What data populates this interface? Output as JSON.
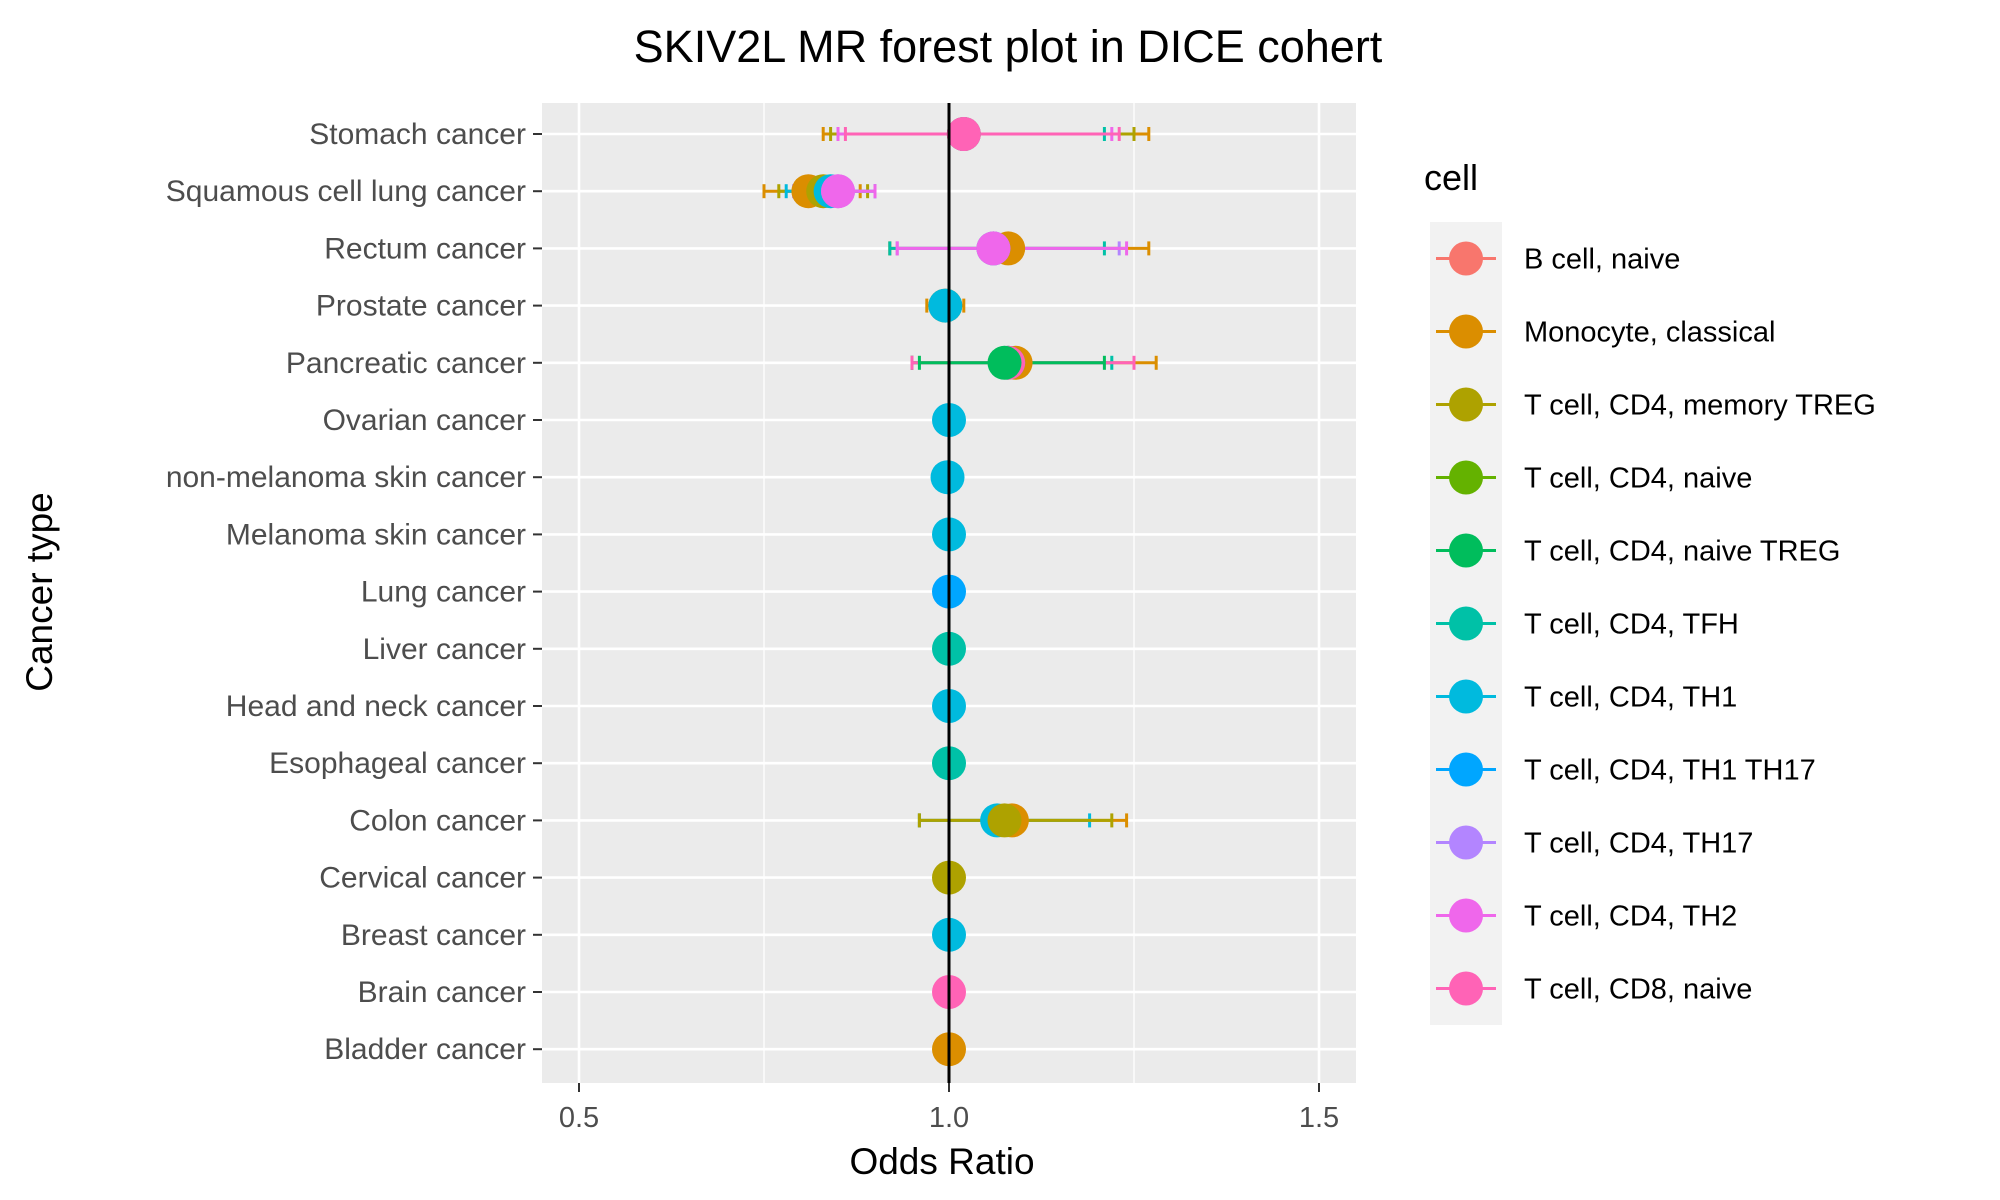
{
  "chart_data": {
    "type": "scatter",
    "subtype": "forest plot (odds ratio with 95% CI error bars)",
    "title": "SKIV2L MR forest plot in DICE cohert",
    "xlabel": "Odds Ratio",
    "ylabel": "Cancer type",
    "xlim": [
      0.45,
      1.55
    ],
    "x_ticks": [
      "0.5",
      "1.0",
      "1.5"
    ],
    "x_tick_values": [
      0.5,
      1.0,
      1.5
    ],
    "reference_line": 1.0,
    "grid": true,
    "legend": {
      "title": "cell",
      "placement": "right",
      "entries": [
        {
          "name": "B cell, naive",
          "color": "#F8766D"
        },
        {
          "name": "Monocyte, classical",
          "color": "#DB8E00"
        },
        {
          "name": "T cell, CD4, memory TREG",
          "color": "#AEA200"
        },
        {
          "name": "T cell, CD4, naive",
          "color": "#64B200"
        },
        {
          "name": "T cell, CD4, naive TREG",
          "color": "#00BD5C"
        },
        {
          "name": "T cell, CD4, TFH",
          "color": "#00C1A7"
        },
        {
          "name": "T cell, CD4, TH1",
          "color": "#00BADE"
        },
        {
          "name": "T cell, CD4, TH1 TH17",
          "color": "#00A6FF"
        },
        {
          "name": "T cell, CD4, TH17",
          "color": "#B385FF"
        },
        {
          "name": "T cell, CD4, TH2",
          "color": "#EF67EB"
        },
        {
          "name": "T cell, CD8, naive",
          "color": "#FF63B6"
        }
      ]
    },
    "categories": [
      "Stomach cancer",
      "Squamous cell lung cancer",
      "Rectum cancer",
      "Prostate cancer",
      "Pancreatic cancer",
      "Ovarian cancer",
      "non-melanoma skin cancer",
      "Melanoma skin cancer",
      "Lung cancer",
      "Liver cancer",
      "Head and neck cancer",
      "Esophageal cancer",
      "Colon cancer",
      "Cervical cancer",
      "Breast cancer",
      "Brain cancer",
      "Bladder cancer"
    ],
    "points": [
      {
        "category": "Stomach cancer",
        "cell": "Monocyte, classical",
        "or": 1.02,
        "lower": 0.83,
        "upper": 1.27
      },
      {
        "category": "Stomach cancer",
        "cell": "T cell, CD4, memory TREG",
        "or": 1.02,
        "lower": 0.84,
        "upper": 1.25
      },
      {
        "category": "Stomach cancer",
        "cell": "T cell, CD4, TFH",
        "or": 1.02,
        "lower": 0.85,
        "upper": 1.21
      },
      {
        "category": "Stomach cancer",
        "cell": "T cell, CD4, TH2",
        "or": 1.02,
        "lower": 0.85,
        "upper": 1.22
      },
      {
        "category": "Stomach cancer",
        "cell": "T cell, CD8, naive",
        "or": 1.02,
        "lower": 0.86,
        "upper": 1.23
      },
      {
        "category": "Squamous cell lung cancer",
        "cell": "Monocyte, classical",
        "or": 0.81,
        "lower": 0.75,
        "upper": 0.88
      },
      {
        "category": "Squamous cell lung cancer",
        "cell": "T cell, CD4, memory TREG",
        "or": 0.83,
        "lower": 0.77,
        "upper": 0.89
      },
      {
        "category": "Squamous cell lung cancer",
        "cell": "T cell, CD4, TH1",
        "or": 0.84,
        "lower": 0.78,
        "upper": 0.9
      },
      {
        "category": "Squamous cell lung cancer",
        "cell": "T cell, CD4, TH17",
        "or": 0.85,
        "lower": 0.79,
        "upper": 0.9
      },
      {
        "category": "Squamous cell lung cancer",
        "cell": "T cell, CD4, TH2",
        "or": 0.85,
        "lower": 0.8,
        "upper": 0.9
      },
      {
        "category": "Rectum cancer",
        "cell": "Monocyte, classical",
        "or": 1.08,
        "lower": 0.92,
        "upper": 1.27
      },
      {
        "category": "Rectum cancer",
        "cell": "T cell, CD4, TFH",
        "or": 1.06,
        "lower": 0.92,
        "upper": 1.21
      },
      {
        "category": "Rectum cancer",
        "cell": "T cell, CD4, TH17",
        "or": 1.06,
        "lower": 0.93,
        "upper": 1.23
      },
      {
        "category": "Rectum cancer",
        "cell": "T cell, CD4, TH2",
        "or": 1.06,
        "lower": 0.93,
        "upper": 1.24
      },
      {
        "category": "Prostate cancer",
        "cell": "Monocyte, classical",
        "or": 0.995,
        "lower": 0.97,
        "upper": 1.02
      },
      {
        "category": "Prostate cancer",
        "cell": "T cell, CD4, TH1",
        "or": 0.995,
        "lower": 0.98,
        "upper": 1.01
      },
      {
        "category": "Pancreatic cancer",
        "cell": "Monocyte, classical",
        "or": 1.09,
        "lower": 0.95,
        "upper": 1.28
      },
      {
        "category": "Pancreatic cancer",
        "cell": "T cell, CD4, TFH",
        "or": 1.08,
        "lower": 0.95,
        "upper": 1.22
      },
      {
        "category": "Pancreatic cancer",
        "cell": "T cell, CD8, naive",
        "or": 1.08,
        "lower": 0.95,
        "upper": 1.25
      },
      {
        "category": "Pancreatic cancer",
        "cell": "T cell, CD4, naive TREG",
        "or": 1.075,
        "lower": 0.96,
        "upper": 1.21
      },
      {
        "category": "Ovarian cancer",
        "cell": "T cell, CD4, TH1",
        "or": 1.0
      },
      {
        "category": "non-melanoma skin cancer",
        "cell": "T cell, CD4, TH1",
        "or": 0.998
      },
      {
        "category": "Melanoma skin cancer",
        "cell": "T cell, CD4, TH1",
        "or": 1.0
      },
      {
        "category": "Lung cancer",
        "cell": "T cell, CD4, TH1 TH17",
        "or": 1.0
      },
      {
        "category": "Liver cancer",
        "cell": "T cell, CD4, TFH",
        "or": 1.0
      },
      {
        "category": "Head and neck cancer",
        "cell": "T cell, CD4, TH1",
        "or": 1.0
      },
      {
        "category": "Esophageal cancer",
        "cell": "T cell, CD4, TFH",
        "or": 1.0
      },
      {
        "category": "Colon cancer",
        "cell": "Monocyte, classical",
        "or": 1.085,
        "lower": 0.96,
        "upper": 1.24
      },
      {
        "category": "Colon cancer",
        "cell": "T cell, CD4, TH1",
        "or": 1.065,
        "lower": 0.96,
        "upper": 1.19
      },
      {
        "category": "Colon cancer",
        "cell": "T cell, CD4, memory TREG",
        "or": 1.075,
        "lower": 0.96,
        "upper": 1.22
      },
      {
        "category": "Cervical cancer",
        "cell": "T cell, CD4, memory TREG",
        "or": 1.0
      },
      {
        "category": "Breast cancer",
        "cell": "T cell, CD4, TH1",
        "or": 1.0
      },
      {
        "category": "Brain cancer",
        "cell": "T cell, CD8, naive",
        "or": 1.0
      },
      {
        "category": "Bladder cancer",
        "cell": "Monocyte, classical",
        "or": 1.0
      }
    ]
  }
}
